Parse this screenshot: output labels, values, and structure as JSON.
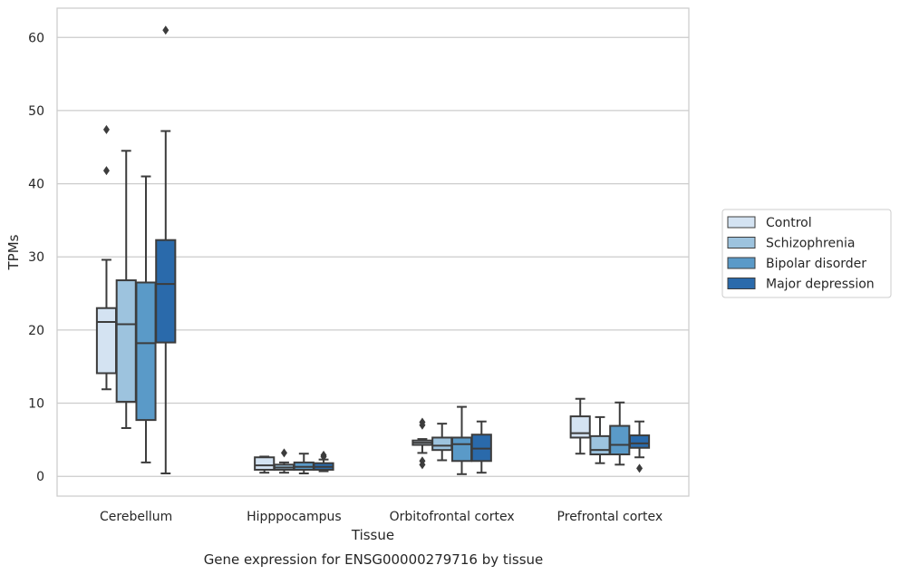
{
  "chart_data": {
    "type": "box",
    "caption": "Gene expression for ENSG00000279716 by tissue",
    "xlabel": "Tissue",
    "ylabel": "TPMs",
    "ylim": [
      -2.7,
      64
    ],
    "yticks": [
      0,
      10,
      20,
      30,
      40,
      50,
      60
    ],
    "grid": "horizontal",
    "legend_position": "right",
    "categories": [
      "Cerebellum",
      "Hipppocampus",
      "Orbitofrontal cortex",
      "Prefrontal cortex"
    ],
    "series": [
      {
        "name": "Control",
        "color": "#d4e3f2",
        "boxes": [
          {
            "whislo": 11.9,
            "q1": 14.1,
            "med": 21.1,
            "q3": 23.0,
            "whishi": 29.6,
            "fliers": [
              47.4,
              41.8
            ]
          },
          {
            "whislo": 0.5,
            "q1": 0.9,
            "med": 1.5,
            "q3": 2.6,
            "whishi": 2.7,
            "fliers": []
          },
          {
            "whislo": 3.2,
            "q1": 4.3,
            "med": 4.6,
            "q3": 4.9,
            "whishi": 5.1,
            "fliers": [
              7.4,
              7.0,
              2.1,
              1.6
            ]
          },
          {
            "whislo": 3.1,
            "q1": 5.3,
            "med": 5.9,
            "q3": 8.2,
            "whishi": 10.6,
            "fliers": []
          }
        ]
      },
      {
        "name": "Schizophrenia",
        "color": "#9dc3de",
        "boxes": [
          {
            "whislo": 6.6,
            "q1": 10.2,
            "med": 20.8,
            "q3": 26.8,
            "whishi": 44.5,
            "fliers": []
          },
          {
            "whislo": 0.5,
            "q1": 0.9,
            "med": 1.2,
            "q3": 1.6,
            "whishi": 1.9,
            "fliers": [
              3.2
            ]
          },
          {
            "whislo": 2.2,
            "q1": 3.6,
            "med": 4.2,
            "q3": 5.3,
            "whishi": 7.2,
            "fliers": []
          },
          {
            "whislo": 1.8,
            "q1": 3.0,
            "med": 3.6,
            "q3": 5.5,
            "whishi": 8.1,
            "fliers": []
          }
        ]
      },
      {
        "name": "Bipolar disorder",
        "color": "#5a9ac8",
        "boxes": [
          {
            "whislo": 1.9,
            "q1": 7.7,
            "med": 18.2,
            "q3": 26.5,
            "whishi": 41.0,
            "fliers": []
          },
          {
            "whislo": 0.4,
            "q1": 0.9,
            "med": 1.3,
            "q3": 1.9,
            "whishi": 3.1,
            "fliers": []
          },
          {
            "whislo": 0.3,
            "q1": 2.1,
            "med": 4.4,
            "q3": 5.3,
            "whishi": 9.5,
            "fliers": []
          },
          {
            "whislo": 1.6,
            "q1": 3.0,
            "med": 4.3,
            "q3": 6.9,
            "whishi": 10.1,
            "fliers": []
          }
        ]
      },
      {
        "name": "Major depression",
        "color": "#2a6aab",
        "boxes": [
          {
            "whislo": 0.4,
            "q1": 18.3,
            "med": 26.3,
            "q3": 32.3,
            "whishi": 47.2,
            "fliers": [
              61.0
            ]
          },
          {
            "whislo": 0.7,
            "q1": 0.9,
            "med": 1.3,
            "q3": 1.8,
            "whishi": 2.3,
            "fliers": [
              2.9,
              2.7
            ]
          },
          {
            "whislo": 0.5,
            "q1": 2.1,
            "med": 3.8,
            "q3": 5.7,
            "whishi": 7.5,
            "fliers": []
          },
          {
            "whislo": 2.6,
            "q1": 3.9,
            "med": 4.5,
            "q3": 5.6,
            "whishi": 7.5,
            "fliers": [
              1.1
            ]
          }
        ]
      }
    ]
  }
}
